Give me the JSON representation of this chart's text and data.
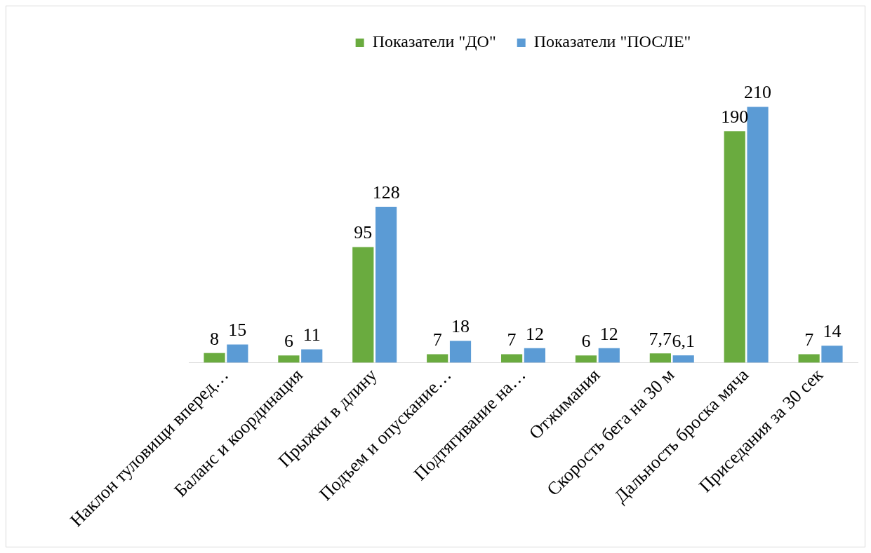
{
  "chart_data": {
    "type": "bar",
    "categories": [
      "Наклон туловищи вперед…",
      "Баланс и координация",
      "Прыжки в длину",
      "Подъем и опускание…",
      "Подтягивание на…",
      "Отжимания",
      "Скорость бега на 30 м",
      "Дальность броска мяча",
      "Приседания за 30 сек"
    ],
    "series": [
      {
        "name": "Показатели \"ДО\"",
        "color": "#6aab3f",
        "values": [
          8,
          6,
          95,
          7,
          7,
          6,
          7.7,
          190,
          7
        ],
        "value_labels": [
          "8",
          "6",
          "95",
          "7",
          "7",
          "6",
          "7,7",
          "190",
          "7"
        ]
      },
      {
        "name": "Показатели \"ПОСЛЕ\"",
        "color": "#5b9bd5",
        "values": [
          15,
          11,
          128,
          18,
          12,
          12,
          6.1,
          210,
          14
        ],
        "value_labels": [
          "15",
          "11",
          "128",
          "18",
          "12",
          "12",
          "6,1",
          "210",
          "14"
        ]
      }
    ],
    "legend": "top",
    "grid": false
  }
}
